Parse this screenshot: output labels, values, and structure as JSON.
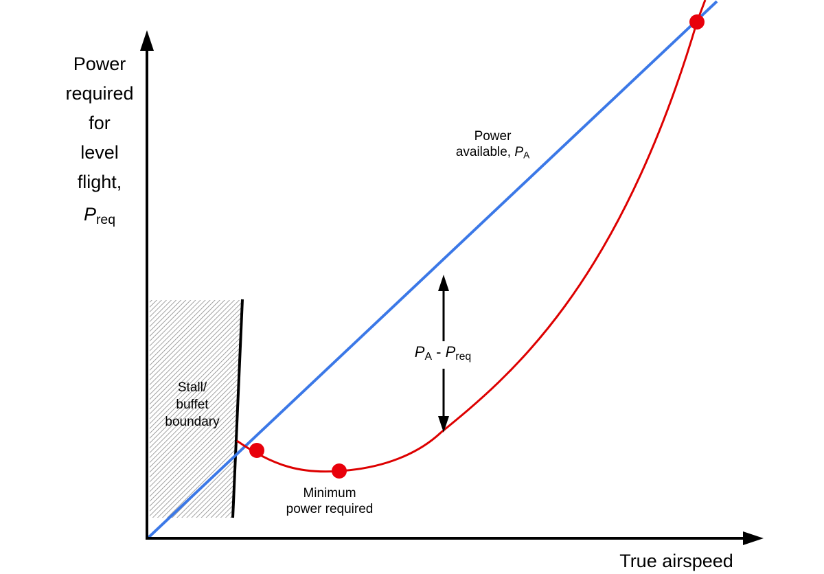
{
  "diagram": {
    "y_axis_label": {
      "line1": "Power",
      "line2": "required",
      "line3": "for",
      "line4": "level",
      "line5": "flight,",
      "symbol": "P",
      "symbol_sub": "req"
    },
    "x_axis_label": "True airspeed",
    "power_available_label": {
      "line1": "Power",
      "line2": "available, ",
      "symbol": "P",
      "symbol_sub": "A"
    },
    "excess_power_label": {
      "p1": "P",
      "sub1": "A",
      "minus": " - ",
      "p2": "P",
      "sub2": "req"
    },
    "stall_label": {
      "line1": "Stall/",
      "line2": "buffet",
      "line3": "boundary"
    },
    "min_power_label": {
      "line1": "Minimum",
      "line2": "power required"
    },
    "colors": {
      "power_available_line": "#3b78e7",
      "power_required_curve": "#dd0000",
      "points": "#e8000b",
      "axes": "#000000",
      "stall_hatch": "#8a8a8a"
    }
  }
}
